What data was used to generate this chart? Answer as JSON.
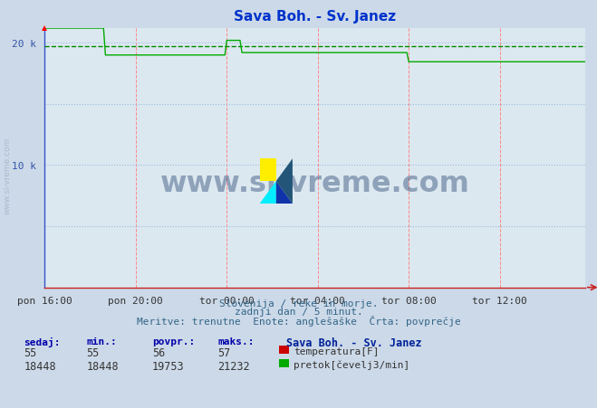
{
  "title": "Sava Boh. - Sv. Janez",
  "bg_color": "#ccd9e8",
  "plot_bg_color": "#dce8f0",
  "grid_color_v": "#ff8888",
  "grid_color_h": "#99bbdd",
  "avg_line_color": "#008800",
  "avg_value": 19753,
  "flow_color": "#00aa00",
  "temp_color": "#cc0000",
  "x_labels": [
    "pon 16:00",
    "pon 20:00",
    "tor 00:00",
    "tor 04:00",
    "tor 08:00",
    "tor 12:00"
  ],
  "x_ticks_idx": [
    0,
    48,
    96,
    144,
    192,
    240
  ],
  "total_points": 288,
  "ylim": [
    0,
    21232
  ],
  "ytick_values": [
    0,
    10000,
    20000
  ],
  "footer_line1": "Slovenija / reke in morje.",
  "footer_line2": "zadnji dan / 5 minut.",
  "footer_line3": "Meritve: trenutne  Enote: anglešaške  Črta: povprečje",
  "table_headers": [
    "sedaj:",
    "min.:",
    "povpr.:",
    "maks.:"
  ],
  "table_values_temp": [
    "55",
    "55",
    "56",
    "57"
  ],
  "table_values_flow": [
    "18448",
    "18448",
    "19753",
    "21232"
  ],
  "label_temp": "temperatura[F]",
  "label_flow": "pretok[čevelj3/min]",
  "station_label": "Sava Boh. - Sv. Janez",
  "flow_data": [
    21200,
    21200,
    21200,
    21200,
    21200,
    21200,
    21200,
    21200,
    21200,
    21200,
    21200,
    21200,
    21200,
    21200,
    21200,
    21200,
    21200,
    21200,
    21200,
    21200,
    21200,
    21200,
    21200,
    21200,
    21200,
    21200,
    21200,
    21200,
    21200,
    21200,
    21200,
    21200,
    19000,
    19000,
    19000,
    19000,
    19000,
    19000,
    19000,
    19000,
    19000,
    19000,
    19000,
    19000,
    19000,
    19000,
    19000,
    19000,
    19000,
    19000,
    19000,
    19000,
    19000,
    19000,
    19000,
    19000,
    19000,
    19000,
    19000,
    19000,
    19000,
    19000,
    19000,
    19000,
    19000,
    19000,
    19000,
    19000,
    19000,
    19000,
    19000,
    19000,
    19000,
    19000,
    19000,
    19000,
    19000,
    19000,
    19000,
    19000,
    19000,
    19000,
    19000,
    19000,
    19000,
    19000,
    19000,
    19000,
    19000,
    19000,
    19000,
    19000,
    19000,
    19000,
    19000,
    19000,
    20200,
    20200,
    20200,
    20200,
    20200,
    20200,
    20200,
    20200,
    19200,
    19200,
    19200,
    19200,
    19200,
    19200,
    19200,
    19200,
    19200,
    19200,
    19200,
    19200,
    19200,
    19200,
    19200,
    19200,
    19200,
    19200,
    19200,
    19200,
    19200,
    19200,
    19200,
    19200,
    19200,
    19200,
    19200,
    19200,
    19200,
    19200,
    19200,
    19200,
    19200,
    19200,
    19200,
    19200,
    19200,
    19200,
    19200,
    19200,
    19200,
    19200,
    19200,
    19200,
    19200,
    19200,
    19200,
    19200,
    19200,
    19200,
    19200,
    19200,
    19200,
    19200,
    19200,
    19200,
    19200,
    19200,
    19200,
    19200,
    19200,
    19200,
    19200,
    19200,
    19200,
    19200,
    19200,
    19200,
    19200,
    19200,
    19200,
    19200,
    19200,
    19200,
    19200,
    19200,
    19200,
    19200,
    19200,
    19200,
    19200,
    19200,
    19200,
    19200,
    19200,
    19200,
    19200,
    19200,
    18448,
    18448,
    18448,
    18448,
    18448,
    18448,
    18448,
    18448,
    18448,
    18448,
    18448,
    18448,
    18448,
    18448,
    18448,
    18448,
    18448,
    18448,
    18448,
    18448,
    18448,
    18448,
    18448,
    18448,
    18448,
    18448,
    18448,
    18448,
    18448,
    18448,
    18448,
    18448,
    18448,
    18448,
    18448,
    18448,
    18448,
    18448,
    18448,
    18448,
    18448,
    18448,
    18448,
    18448,
    18448,
    18448,
    18448,
    18448,
    18448,
    18448,
    18448,
    18448,
    18448,
    18448,
    18448,
    18448,
    18448,
    18448,
    18448,
    18448,
    18448,
    18448,
    18448,
    18448,
    18448,
    18448,
    18448,
    18448,
    18448,
    18448,
    18448,
    18448,
    18448,
    18448,
    18448,
    18448,
    18448,
    18448,
    18448,
    18448,
    18448,
    18448,
    18448,
    18448,
    18448,
    18448,
    18448,
    18448,
    18448,
    18448,
    18448,
    18448,
    18448,
    18448
  ]
}
